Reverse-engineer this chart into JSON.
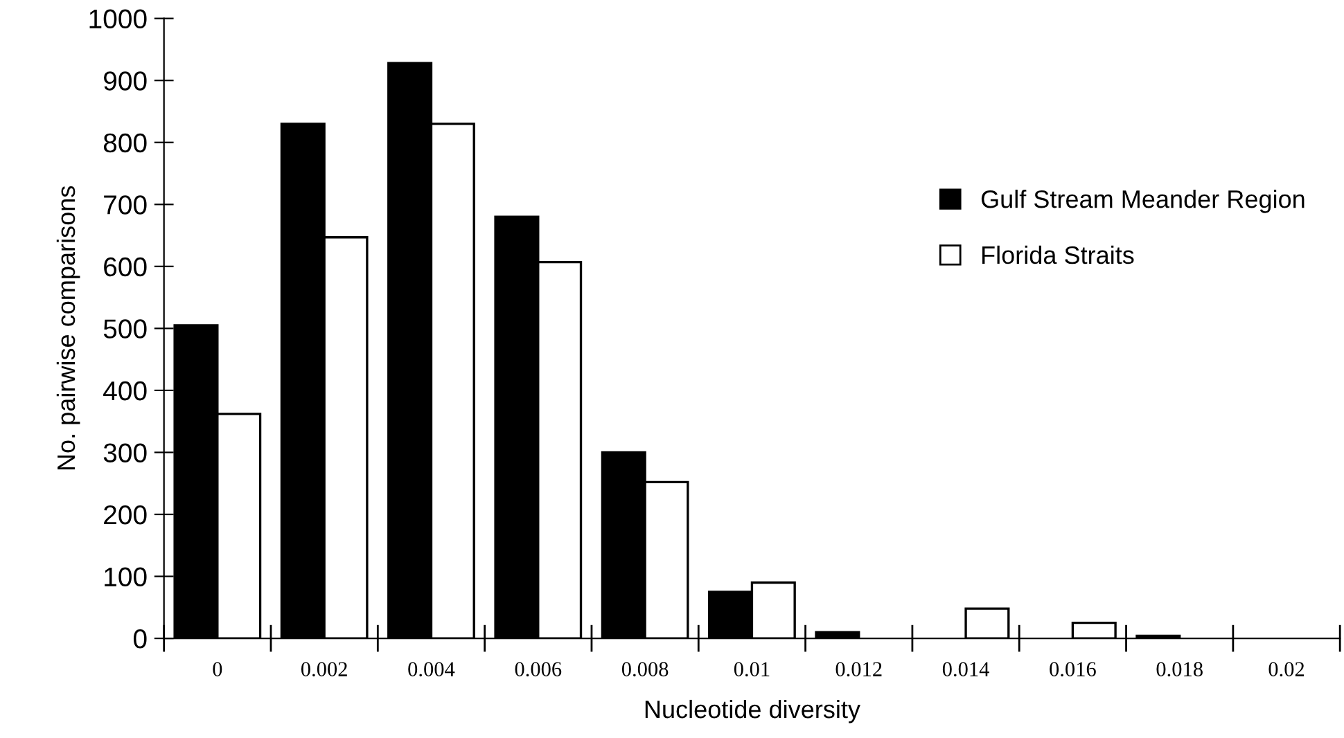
{
  "chart_data": {
    "type": "bar",
    "xlabel": "Nucleotide diversity",
    "ylabel": "No. pairwise comparisons",
    "categories": [
      "0",
      "0.002",
      "0.004",
      "0.006",
      "0.008",
      "0.01",
      "0.012",
      "0.014",
      "0.016",
      "0.018",
      "0.02"
    ],
    "series": [
      {
        "name": "Gulf Stream Meander Region",
        "color": "#000000",
        "values": [
          505,
          830,
          928,
          680,
          300,
          75,
          10,
          0,
          0,
          4,
          0
        ]
      },
      {
        "name": "Florida Straits",
        "color": "#ffffff",
        "values": [
          362,
          647,
          830,
          607,
          252,
          90,
          0,
          48,
          25,
          0,
          0
        ]
      }
    ],
    "ylim": [
      0,
      1000
    ],
    "yticks": [
      0,
      100,
      200,
      300,
      400,
      500,
      600,
      700,
      800,
      900,
      1000
    ],
    "grid": false,
    "legend": "right"
  }
}
